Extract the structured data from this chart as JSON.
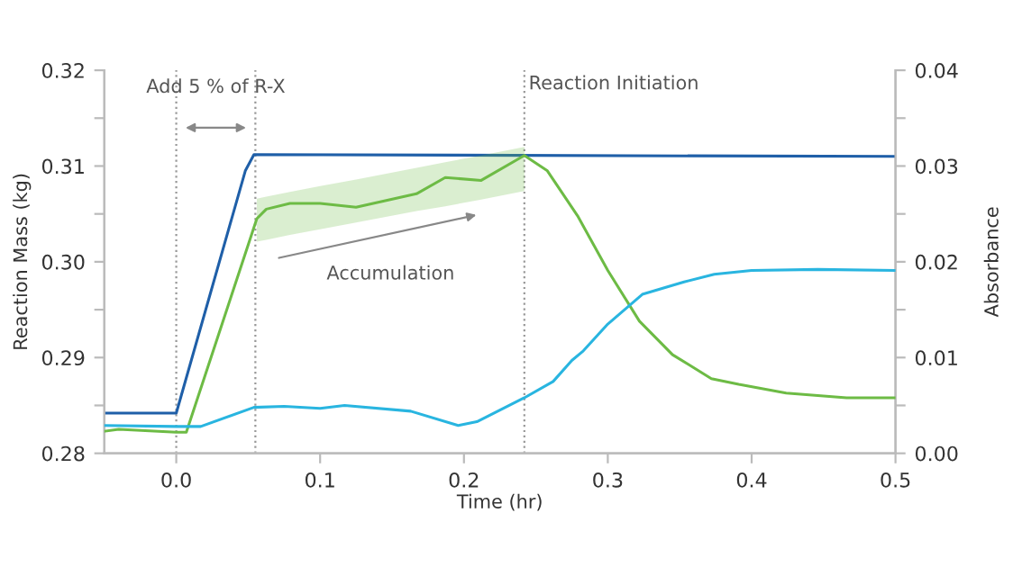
{
  "chart_data": {
    "type": "line",
    "xlabel": "Time (hr)",
    "ylabel": "Reaction Mass (kg)",
    "y2label": "Absorbance",
    "xlim": [
      -0.05,
      0.5
    ],
    "xticks": [
      {
        "value": 0.0,
        "label": "0.0"
      },
      {
        "value": 0.1,
        "label": "0.1"
      },
      {
        "value": 0.2,
        "label": "0.2"
      },
      {
        "value": 0.3,
        "label": "0.3"
      },
      {
        "value": 0.4,
        "label": "0.4"
      },
      {
        "value": 0.5,
        "label": "0.5"
      }
    ],
    "ylim": [
      0.28,
      0.32
    ],
    "yticks": [
      {
        "value": 0.28,
        "label": "0.28"
      },
      {
        "value": 0.285,
        "label": null
      },
      {
        "value": 0.29,
        "label": "0.29"
      },
      {
        "value": 0.295,
        "label": null
      },
      {
        "value": 0.3,
        "label": "0.30"
      },
      {
        "value": 0.305,
        "label": null
      },
      {
        "value": 0.31,
        "label": "0.31"
      },
      {
        "value": 0.315,
        "label": null
      },
      {
        "value": 0.32,
        "label": "0.32"
      }
    ],
    "y2lim": [
      0.0,
      0.04
    ],
    "y2ticks": [
      {
        "value": 0.0,
        "label": "0.00"
      },
      {
        "value": 0.005,
        "label": null
      },
      {
        "value": 0.01,
        "label": "0.01"
      },
      {
        "value": 0.015,
        "label": null
      },
      {
        "value": 0.02,
        "label": "0.02"
      },
      {
        "value": 0.025,
        "label": null
      },
      {
        "value": 0.03,
        "label": "0.03"
      },
      {
        "value": 0.035,
        "label": null
      },
      {
        "value": 0.04,
        "label": "0.04"
      }
    ],
    "series": [
      {
        "color": "#1f5fa8",
        "x": [
          -0.05,
          0.0,
          0.048,
          0.054,
          0.5
        ],
        "values": [
          0.2842,
          0.2842,
          0.3095,
          0.3112,
          0.311
        ]
      },
      {
        "color": "#6dbb45",
        "axis": "y2",
        "x": [
          -0.05,
          -0.04,
          0.0,
          0.007,
          0.056,
          0.0626,
          0.079,
          0.1,
          0.125,
          0.167,
          0.187,
          0.212,
          0.242,
          0.258,
          0.279,
          0.3,
          0.322,
          0.345,
          0.372,
          0.391,
          0.424,
          0.466,
          0.5
        ],
        "values": [
          0.0023,
          0.0025,
          0.0022,
          0.0022,
          0.0245,
          0.0255,
          0.0261,
          0.0261,
          0.0257,
          0.0271,
          0.0288,
          0.0285,
          0.0311,
          0.0295,
          0.0248,
          0.0191,
          0.0138,
          0.0103,
          0.0078,
          0.0072,
          0.0063,
          0.0058,
          0.0058
        ],
        "lower": [
          null,
          null,
          null,
          null,
          0.0221,
          0.0223,
          0.0228,
          0.0234,
          0.0241,
          0.0253,
          0.0258,
          0.0265,
          0.0274,
          null,
          null,
          null,
          null,
          null,
          null,
          null,
          null,
          null,
          null
        ],
        "upper": [
          null,
          null,
          null,
          null,
          0.0266,
          0.0268,
          0.0273,
          0.0279,
          0.0286,
          0.0298,
          0.0304,
          0.0311,
          0.032,
          null,
          null,
          null,
          null,
          null,
          null,
          null,
          null,
          null,
          null
        ]
      },
      {
        "color": "#29b5e0",
        "axis": "y2",
        "x": [
          -0.05,
          0.0,
          0.017,
          0.054,
          0.075,
          0.1,
          0.117,
          0.163,
          0.196,
          0.209,
          0.242,
          0.262,
          0.275,
          0.283,
          0.3,
          0.324,
          0.353,
          0.374,
          0.4,
          0.446,
          0.5
        ],
        "values": [
          0.0029,
          0.0028,
          0.0028,
          0.0048,
          0.0049,
          0.0047,
          0.005,
          0.0044,
          0.0029,
          0.0033,
          0.0058,
          0.0075,
          0.0097,
          0.0107,
          0.0135,
          0.0166,
          0.0179,
          0.0187,
          0.0191,
          0.0192,
          0.0191
        ]
      }
    ],
    "ref_lines": [
      {
        "axis": "x",
        "value": 0.0,
        "color": "#999999",
        "line_style": "dotted"
      },
      {
        "axis": "x",
        "value": 0.055,
        "color": "#999999",
        "line_style": "dotted"
      },
      {
        "axis": "x",
        "value": 0.242,
        "label": "Reaction Initiation",
        "color": "#999999",
        "line_style": "dotted"
      }
    ],
    "annotations": [
      "Add 5 % of R-X",
      "Accumulation"
    ],
    "marker": "none",
    "line_style": "solid"
  }
}
